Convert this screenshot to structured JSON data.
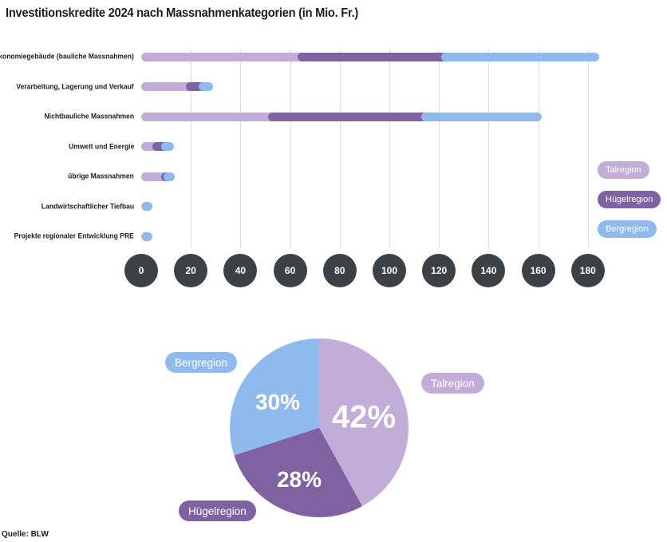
{
  "title": "Investitionskredite 2024 nach Massnahmenkategorien (in Mio. Fr.)",
  "source": "Quelle: BLW",
  "colors": {
    "talregion": "#c2acd8",
    "huegelregion": "#8062a2",
    "bergregion": "#8fbaee",
    "axis_tick": "#3c4147",
    "gridline": "#dcdcdc",
    "text": "#1d1d1b"
  },
  "legend": [
    {
      "label": "Talregion",
      "color": "#c2acd8"
    },
    {
      "label": "Hügelregion",
      "color": "#8062a2"
    },
    {
      "label": "Bergregion",
      "color": "#8fbaee"
    }
  ],
  "chart_data": [
    {
      "type": "bar",
      "orientation": "horizontal",
      "stacked": true,
      "title": "Investitionskredite 2024 nach Massnahmenkategorien (in Mio. Fr.)",
      "unit": "Mio. Fr.",
      "categories": [
        "Ökonomiegebäude (bauliche Massnahmen)",
        "Verarbeitung, Lagerung und Verkauf",
        "Nichtbauliche Massnahmen",
        "Umwelt und Energie",
        "übrige Massnahmen",
        "Landwirtschaftlicher Tiefbau",
        "Projekte regionaler Entwicklung PRE"
      ],
      "series": [
        {
          "name": "Talregion",
          "color": "#c2acd8",
          "values": [
            63,
            18,
            51,
            4.5,
            8,
            0.5,
            0.5
          ]
        },
        {
          "name": "Hügelregion",
          "color": "#8062a2",
          "values": [
            58,
            5,
            62,
            3.5,
            1,
            0.3,
            0.2
          ]
        },
        {
          "name": "Bergregion",
          "color": "#8fbaee",
          "values": [
            60,
            2.5,
            45,
            1.5,
            1,
            0.2,
            0.3
          ]
        }
      ],
      "x_ticks": [
        0,
        20,
        40,
        60,
        80,
        100,
        120,
        140,
        160,
        180
      ],
      "xlim": [
        0,
        190
      ],
      "grid": "vertical",
      "legend_position": "right"
    },
    {
      "type": "pie",
      "unit": "%",
      "start_angle_deg": 0,
      "direction": "clockwise",
      "slices": [
        {
          "label": "Talregion",
          "value": 42,
          "display": "42%",
          "color": "#c2acd8"
        },
        {
          "label": "Hügelregion",
          "value": 28,
          "display": "28%",
          "color": "#8062a2"
        },
        {
          "label": "Bergregion",
          "value": 30,
          "display": "30%",
          "color": "#8fbaee"
        }
      ]
    }
  ]
}
